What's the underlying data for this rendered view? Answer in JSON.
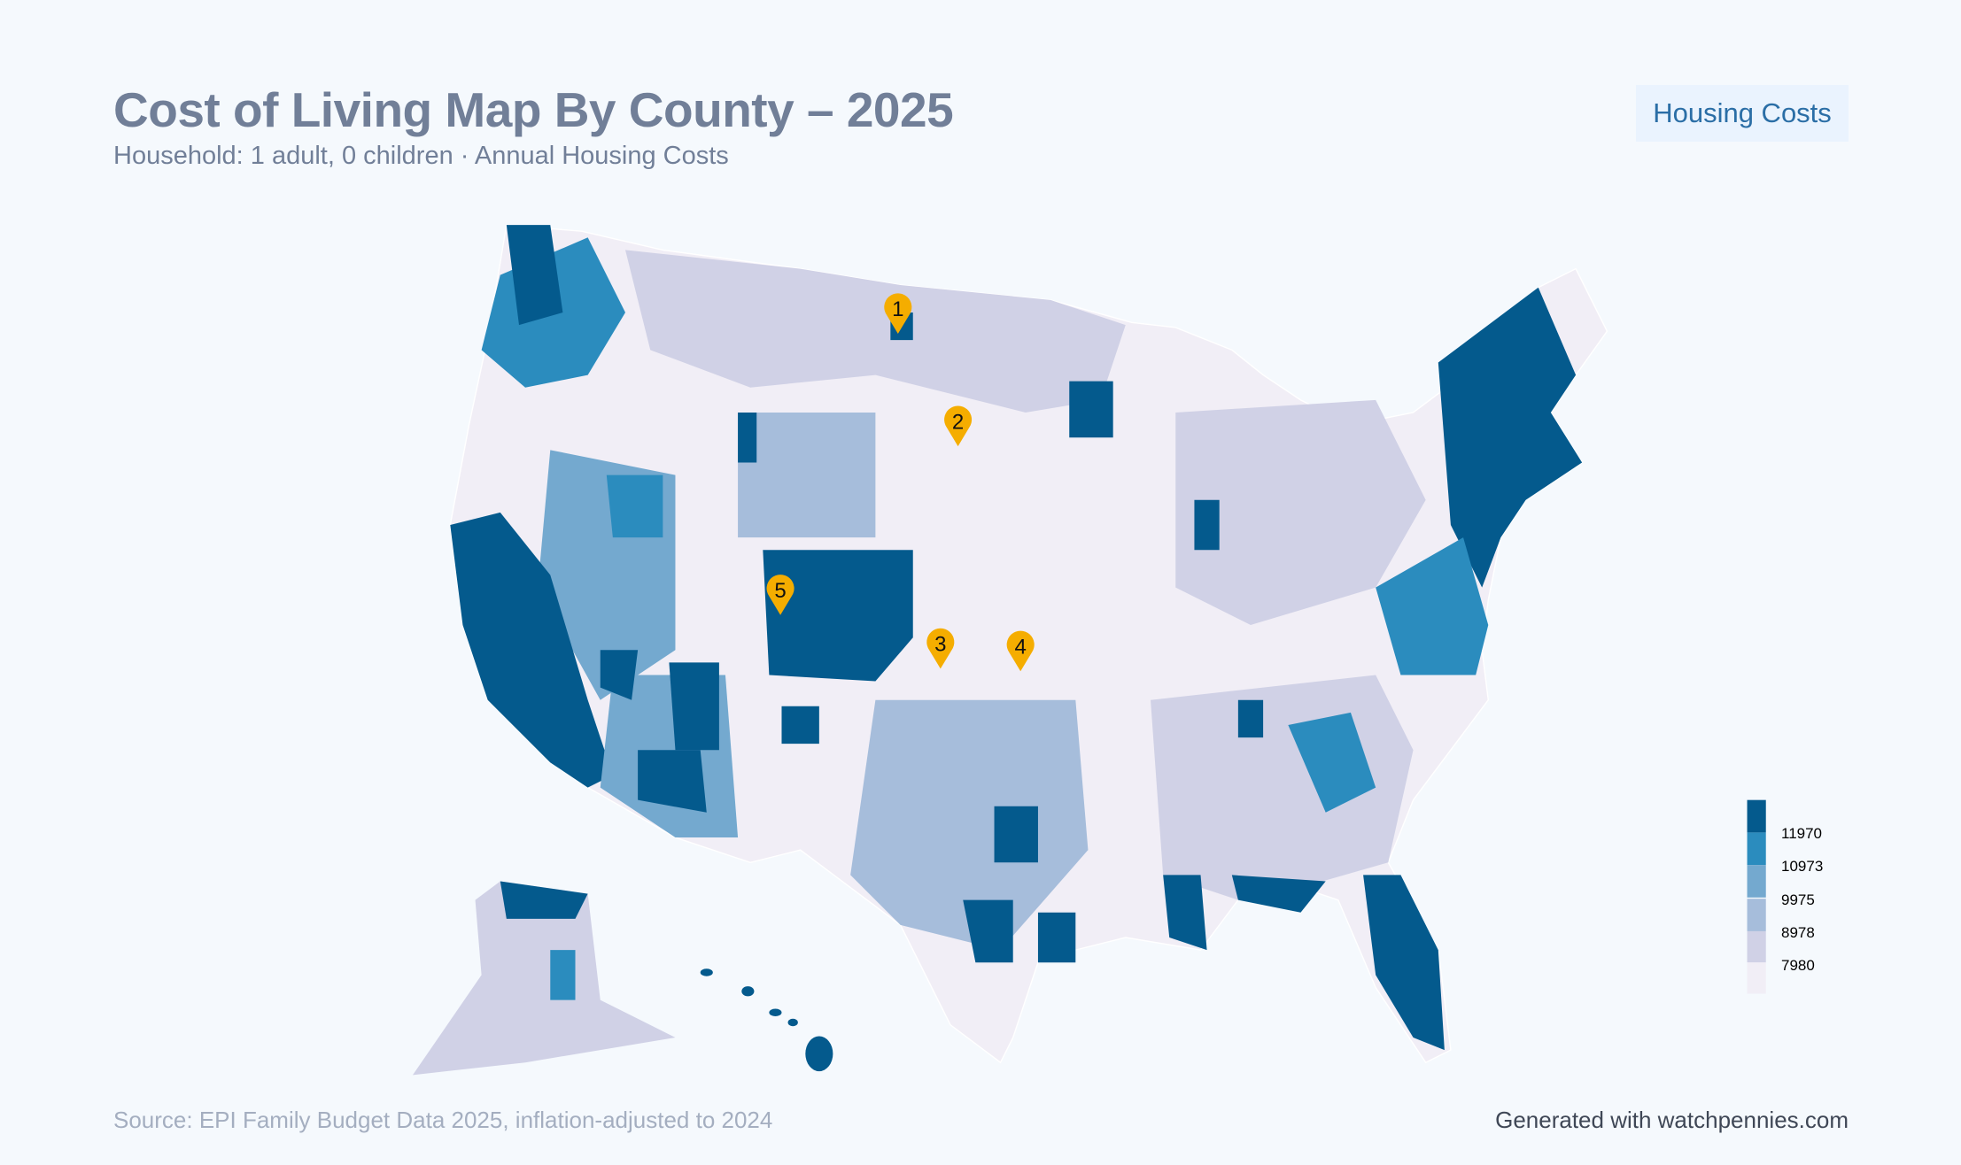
{
  "header": {
    "title": "Cost of Living Map By County – 2025",
    "subtitle": "Household: 1 adult, 0 children · Annual Housing Costs",
    "badge": "Housing Costs"
  },
  "map": {
    "type": "choropleth",
    "region": "United States counties",
    "metric": "Annual Housing Costs",
    "markers": [
      "1",
      "2",
      "3",
      "4",
      "5"
    ],
    "marker_color": "#f5ad00",
    "legend": {
      "placement": "bottom-right",
      "labels": [
        "11970",
        "10973",
        "9975",
        "8978",
        "7980"
      ],
      "colors": [
        "#045a8d",
        "#2b8cbe",
        "#74a9cf",
        "#a6bddb",
        "#d0d1e6",
        "#f1eef6"
      ]
    }
  },
  "footer": {
    "source": "Source: EPI Family Budget Data 2025, inflation-adjusted to 2024",
    "credit": "Generated with watchpennies.com"
  }
}
